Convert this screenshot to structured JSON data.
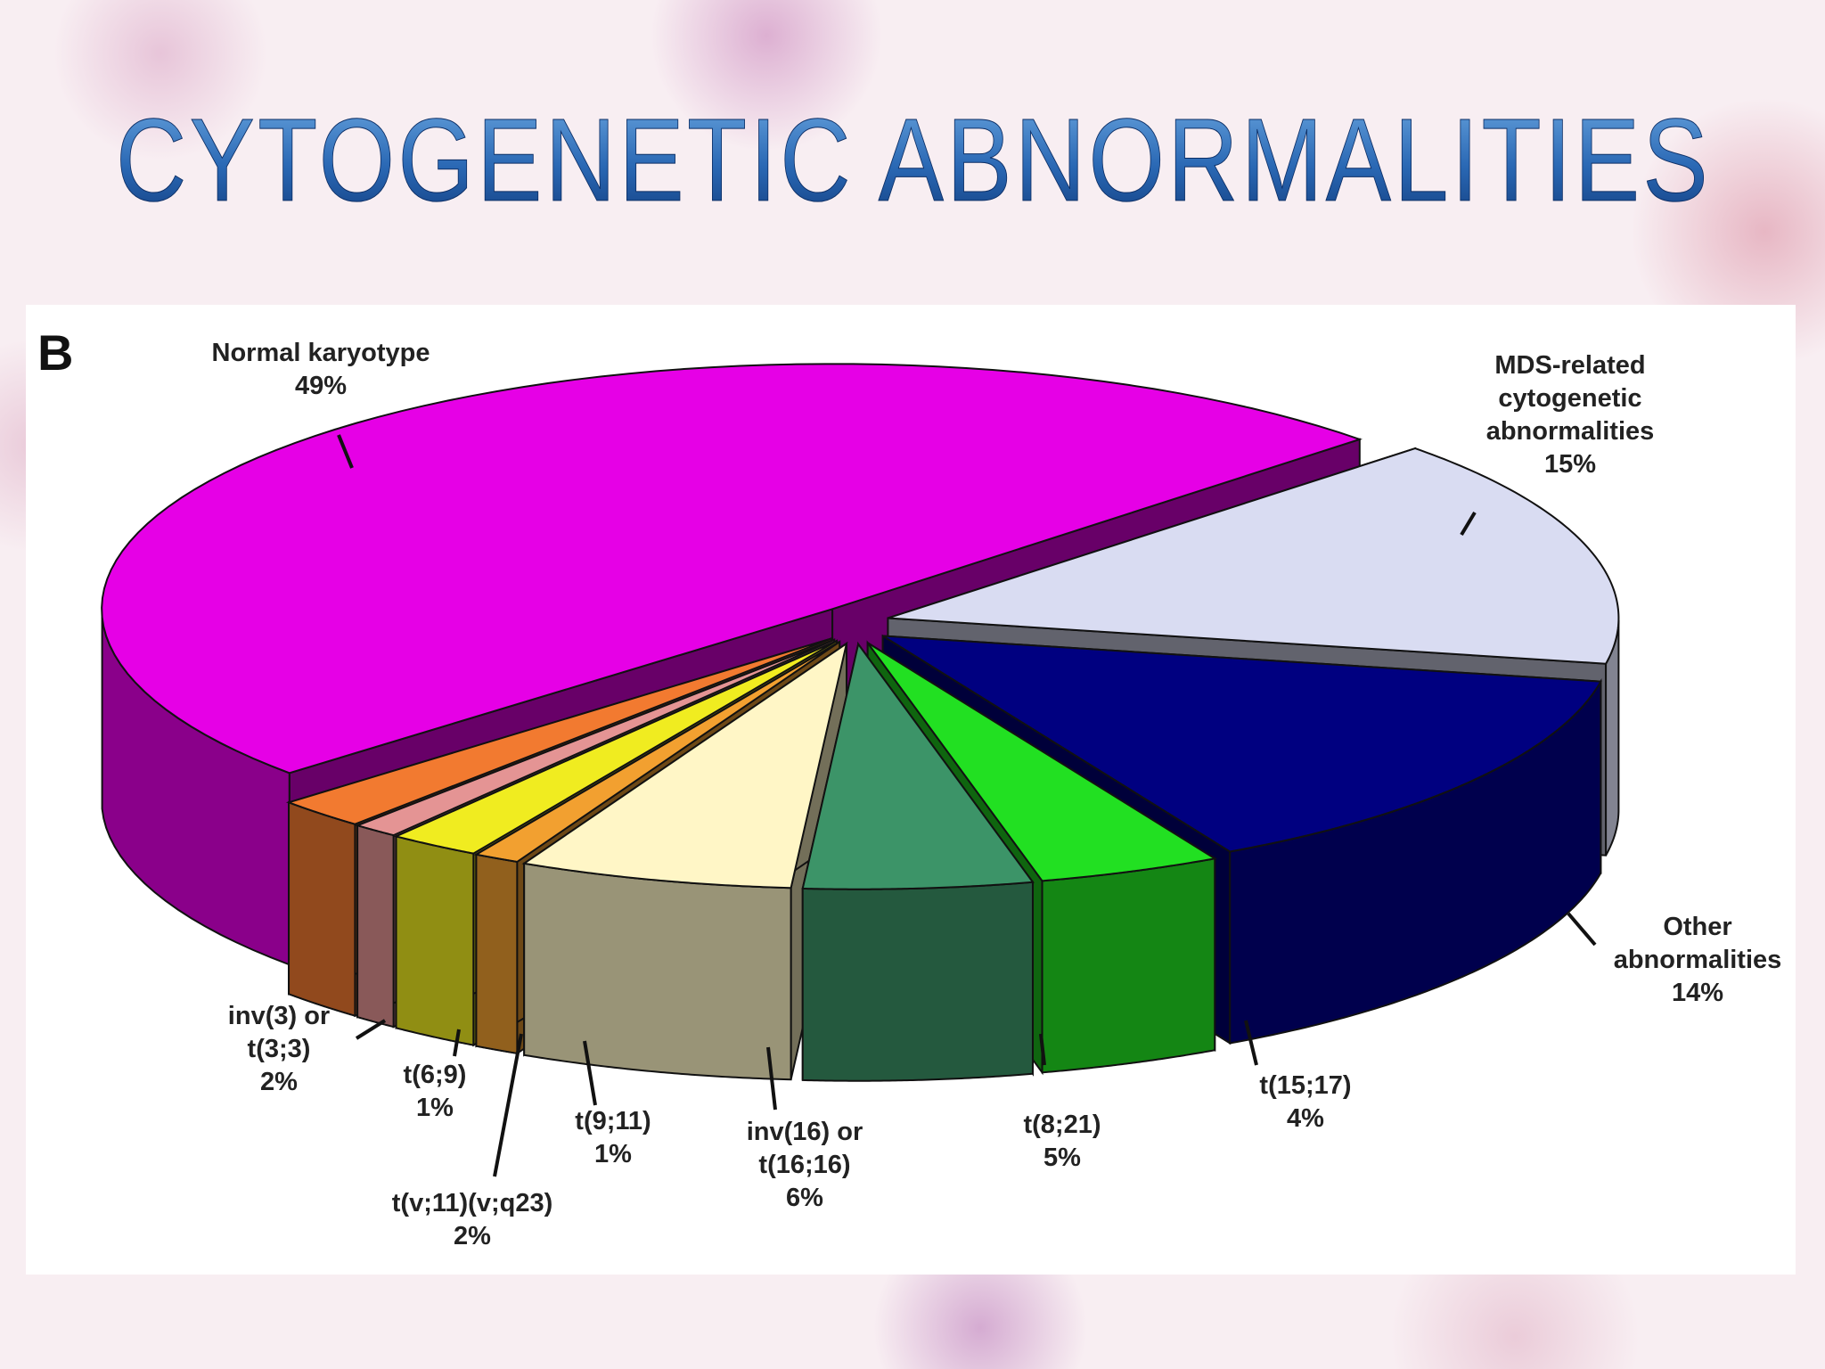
{
  "chart_data": {
    "type": "pie",
    "title": "CYTOGENETIC ABNORMALITIES",
    "panel_label": "B",
    "categories": [
      "Normal karyotype",
      "MDS-related cytogenetic abnormalities",
      "Other abnormalities",
      "t(15;17)",
      "t(8;21)",
      "inv(16) or t(16;16)",
      "t(9;11)",
      "t(v;11)(v;q23)",
      "t(6;9)",
      "inv(3) or t(3;3)"
    ],
    "values": [
      49,
      15,
      14,
      4,
      5,
      6,
      1,
      2,
      1,
      2
    ],
    "value_labels": [
      "49%",
      "15%",
      "14%",
      "4%",
      "5%",
      "6%",
      "1%",
      "2%",
      "1%",
      "2%"
    ],
    "colors": [
      "#e600e6",
      "#d9dcf2",
      "#000080",
      "#22e022",
      "#3c9468",
      "#fff6c6",
      "#f2a030",
      "#f0ec20",
      "#e49494",
      "#f27a30"
    ]
  }
}
